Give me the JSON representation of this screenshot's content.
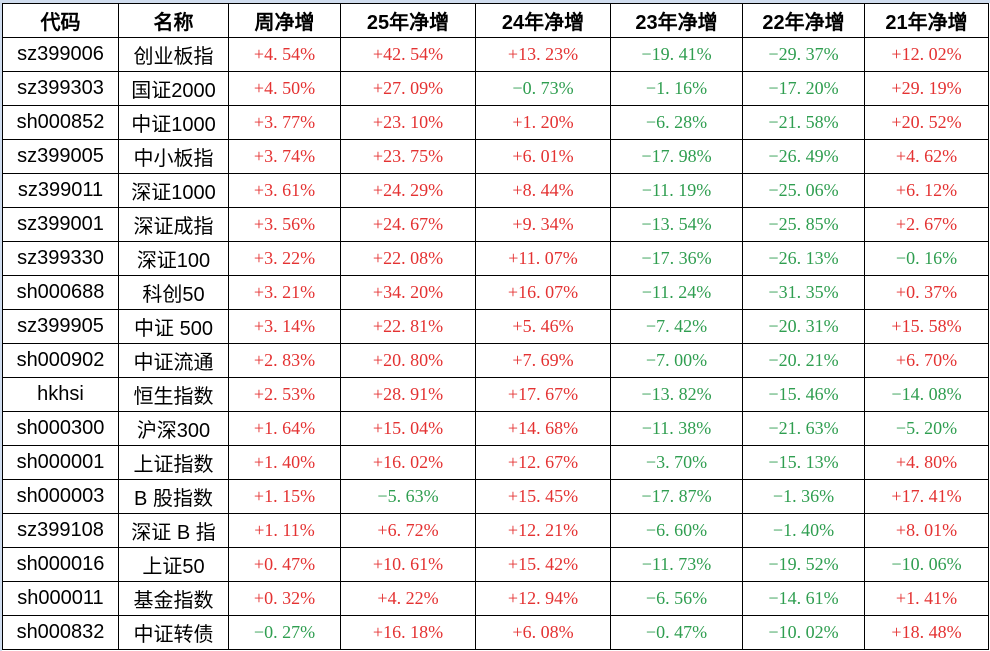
{
  "colors": {
    "positive_value": "#e43232",
    "negative_value": "#2f9e50",
    "grid_border": "#000000",
    "header_text": "#000000",
    "cell_background": "#ffffff",
    "edge_strip": "#cfdcee"
  },
  "table": {
    "columns": [
      {
        "key": "code",
        "label": "代码",
        "type": "text"
      },
      {
        "key": "name",
        "label": "名称",
        "type": "text"
      },
      {
        "key": "week",
        "label": "周净增",
        "type": "value"
      },
      {
        "key": "y25",
        "label": "25年净增",
        "type": "value"
      },
      {
        "key": "y24",
        "label": "24年净增",
        "type": "value"
      },
      {
        "key": "y23",
        "label": "23年净增",
        "type": "value"
      },
      {
        "key": "y22",
        "label": "22年净增",
        "type": "value"
      },
      {
        "key": "y21",
        "label": "21年净增",
        "type": "value"
      }
    ],
    "rows": [
      {
        "code": "sz399006",
        "name": "创业板指",
        "week": "+4. 54%",
        "y25": "+42. 54%",
        "y24": "+13. 23%",
        "y23": "−19. 41%",
        "y22": "−29. 37%",
        "y21": "+12. 02%"
      },
      {
        "code": "sz399303",
        "name": "国证2000",
        "week": "+4. 50%",
        "y25": "+27. 09%",
        "y24": "−0. 73%",
        "y23": "−1. 16%",
        "y22": "−17. 20%",
        "y21": "+29. 19%"
      },
      {
        "code": "sh000852",
        "name": "中证1000",
        "week": "+3. 77%",
        "y25": "+23. 10%",
        "y24": "+1. 20%",
        "y23": "−6. 28%",
        "y22": "−21. 58%",
        "y21": "+20. 52%"
      },
      {
        "code": "sz399005",
        "name": "中小板指",
        "week": "+3. 74%",
        "y25": "+23. 75%",
        "y24": "+6. 01%",
        "y23": "−17. 98%",
        "y22": "−26. 49%",
        "y21": "+4. 62%"
      },
      {
        "code": "sz399011",
        "name": "深证1000",
        "week": "+3. 61%",
        "y25": "+24. 29%",
        "y24": "+8. 44%",
        "y23": "−11. 19%",
        "y22": "−25. 06%",
        "y21": "+6. 12%"
      },
      {
        "code": "sz399001",
        "name": "深证成指",
        "week": "+3. 56%",
        "y25": "+24. 67%",
        "y24": "+9. 34%",
        "y23": "−13. 54%",
        "y22": "−25. 85%",
        "y21": "+2. 67%"
      },
      {
        "code": "sz399330",
        "name": "深证100",
        "week": "+3. 22%",
        "y25": "+22. 08%",
        "y24": "+11. 07%",
        "y23": "−17. 36%",
        "y22": "−26. 13%",
        "y21": "−0. 16%"
      },
      {
        "code": "sh000688",
        "name": "科创50",
        "week": "+3. 21%",
        "y25": "+34. 20%",
        "y24": "+16. 07%",
        "y23": "−11. 24%",
        "y22": "−31. 35%",
        "y21": "+0. 37%"
      },
      {
        "code": "sz399905",
        "name": "中证 500",
        "week": "+3. 14%",
        "y25": "+22. 81%",
        "y24": "+5. 46%",
        "y23": "−7. 42%",
        "y22": "−20. 31%",
        "y21": "+15. 58%"
      },
      {
        "code": "sh000902",
        "name": "中证流通",
        "week": "+2. 83%",
        "y25": "+20. 80%",
        "y24": "+7. 69%",
        "y23": "−7. 00%",
        "y22": "−20. 21%",
        "y21": "+6. 70%"
      },
      {
        "code": "hkhsi",
        "name": "恒生指数",
        "week": "+2. 53%",
        "y25": "+28. 91%",
        "y24": "+17. 67%",
        "y23": "−13. 82%",
        "y22": "−15. 46%",
        "y21": "−14. 08%"
      },
      {
        "code": "sh000300",
        "name": "沪深300",
        "week": "+1. 64%",
        "y25": "+15. 04%",
        "y24": "+14. 68%",
        "y23": "−11. 38%",
        "y22": "−21. 63%",
        "y21": "−5. 20%"
      },
      {
        "code": "sh000001",
        "name": "上证指数",
        "week": "+1. 40%",
        "y25": "+16. 02%",
        "y24": "+12. 67%",
        "y23": "−3. 70%",
        "y22": "−15. 13%",
        "y21": "+4. 80%"
      },
      {
        "code": "sh000003",
        "name": "B 股指数",
        "week": "+1. 15%",
        "y25": "−5. 63%",
        "y24": "+15. 45%",
        "y23": "−17. 87%",
        "y22": "−1. 36%",
        "y21": "+17. 41%"
      },
      {
        "code": "sz399108",
        "name": "深证 B 指",
        "week": "+1. 11%",
        "y25": "+6. 72%",
        "y24": "+12. 21%",
        "y23": "−6. 60%",
        "y22": "−1. 40%",
        "y21": "+8. 01%"
      },
      {
        "code": "sh000016",
        "name": "上证50",
        "week": "+0. 47%",
        "y25": "+10. 61%",
        "y24": "+15. 42%",
        "y23": "−11. 73%",
        "y22": "−19. 52%",
        "y21": "−10. 06%"
      },
      {
        "code": "sh000011",
        "name": "基金指数",
        "week": "+0. 32%",
        "y25": "+4. 22%",
        "y24": "+12. 94%",
        "y23": "−6. 56%",
        "y22": "−14. 61%",
        "y21": "+1. 41%"
      },
      {
        "code": "sh000832",
        "name": "中证转债",
        "week": "−0. 27%",
        "y25": "+16. 18%",
        "y24": "+6. 08%",
        "y23": "−0. 47%",
        "y22": "−10. 02%",
        "y21": "+18. 48%"
      }
    ]
  }
}
